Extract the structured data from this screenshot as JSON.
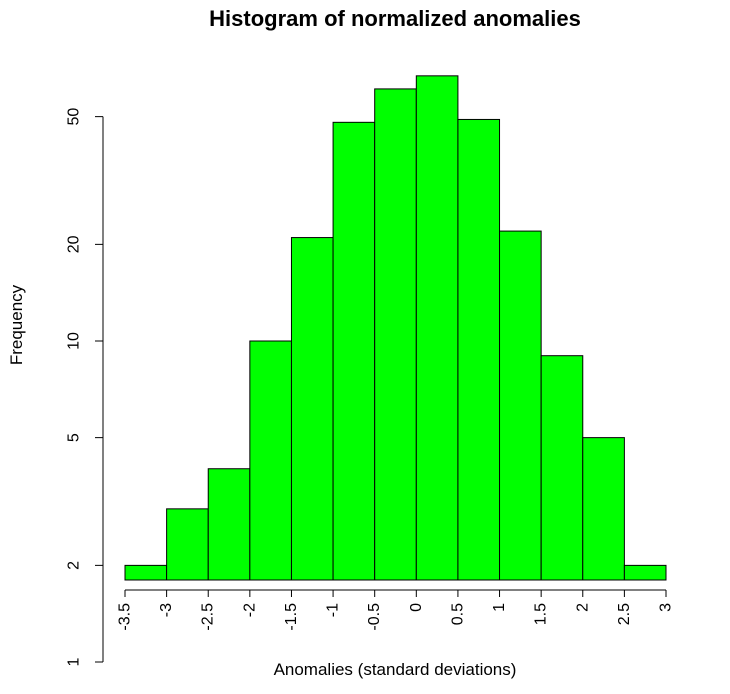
{
  "chart_data": {
    "type": "bar",
    "title": "Histogram of normalized anomalies",
    "xlabel": "Anomalies (standard deviations)",
    "ylabel": "Frequency",
    "y_scale": "log",
    "ylim": [
      1,
      75
    ],
    "bar_color": "#00ff00",
    "border_color": "#000000",
    "grid": false,
    "bins": [
      {
        "from": -3.5,
        "to": -3.0,
        "count": 2
      },
      {
        "from": -3.0,
        "to": -2.5,
        "count": 3
      },
      {
        "from": -2.5,
        "to": -2.0,
        "count": 4
      },
      {
        "from": -2.0,
        "to": -1.5,
        "count": 10
      },
      {
        "from": -1.5,
        "to": -1.0,
        "count": 21
      },
      {
        "from": -1.0,
        "to": -0.5,
        "count": 48
      },
      {
        "from": -0.5,
        "to": 0.0,
        "count": 61
      },
      {
        "from": 0.0,
        "to": 0.5,
        "count": 67
      },
      {
        "from": 0.5,
        "to": 1.0,
        "count": 49
      },
      {
        "from": 1.0,
        "to": 1.5,
        "count": 22
      },
      {
        "from": 1.5,
        "to": 2.0,
        "count": 9
      },
      {
        "from": 2.0,
        "to": 2.5,
        "count": 5
      },
      {
        "from": 2.5,
        "to": 3.0,
        "count": 2
      }
    ],
    "x_ticks": [
      {
        "value": -3.5,
        "label": "-3.5"
      },
      {
        "value": -3.0,
        "label": "-3"
      },
      {
        "value": -2.5,
        "label": "-2.5"
      },
      {
        "value": -2.0,
        "label": "-2"
      },
      {
        "value": -1.5,
        "label": "-1.5"
      },
      {
        "value": -1.0,
        "label": "-1"
      },
      {
        "value": -0.5,
        "label": "-0.5"
      },
      {
        "value": 0.0,
        "label": "0"
      },
      {
        "value": 0.5,
        "label": "0.5"
      },
      {
        "value": 1.0,
        "label": "1"
      },
      {
        "value": 1.5,
        "label": "1.5"
      },
      {
        "value": 2.0,
        "label": "2"
      },
      {
        "value": 2.5,
        "label": "2.5"
      },
      {
        "value": 3.0,
        "label": "3"
      }
    ],
    "y_ticks": [
      {
        "value": 1,
        "label": "1"
      },
      {
        "value": 2,
        "label": "2"
      },
      {
        "value": 5,
        "label": "5"
      },
      {
        "value": 10,
        "label": "10"
      },
      {
        "value": 20,
        "label": "20"
      },
      {
        "value": 50,
        "label": "50"
      }
    ]
  }
}
